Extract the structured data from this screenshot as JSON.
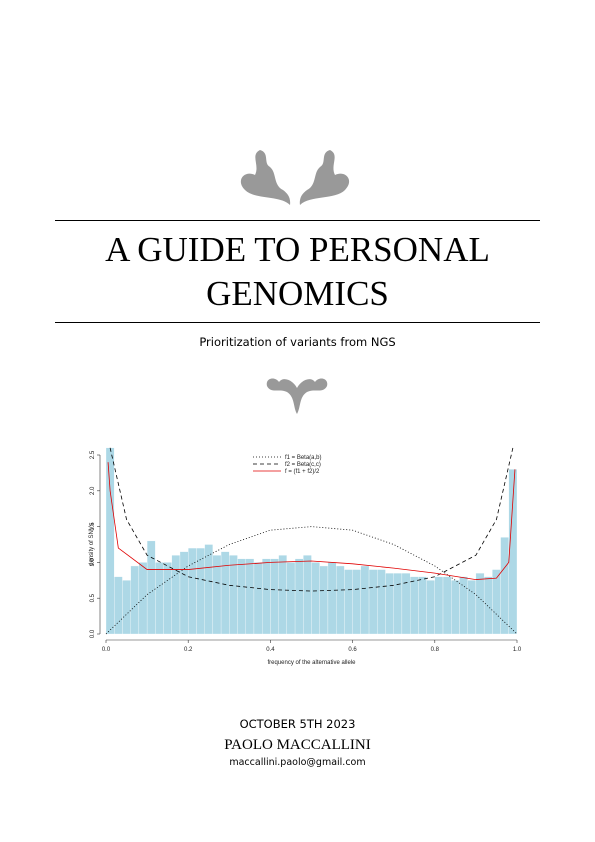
{
  "title": "A GUIDE TO PERSONAL GENOMICS",
  "subtitle": "Prioritization of variants from NGS",
  "date": "OCTOBER 5TH 2023",
  "author": "PAOLO MACCALLINI",
  "email": "maccallini.paolo@gmail.com",
  "figure": {
    "type": "histogram",
    "xlabel": "frequency of the alternative allele",
    "ylabel": "density of SNVs",
    "bins": [
      0,
      0.02,
      0.04,
      0.06,
      0.08,
      0.1,
      0.12,
      0.14,
      0.16,
      0.18,
      0.2,
      0.22,
      0.24,
      0.26,
      0.28,
      0.3,
      0.32,
      0.34,
      0.36,
      0.38,
      0.4,
      0.42,
      0.44,
      0.46,
      0.48,
      0.5,
      0.52,
      0.54,
      0.56,
      0.58,
      0.6,
      0.62,
      0.64,
      0.66,
      0.68,
      0.7,
      0.72,
      0.74,
      0.76,
      0.78,
      0.8,
      0.82,
      0.84,
      0.86,
      0.88,
      0.9,
      0.92,
      0.94,
      0.96,
      0.98,
      1
    ],
    "values": [
      2.6,
      0.8,
      0.75,
      0.95,
      1.0,
      1.3,
      1.0,
      1.0,
      1.1,
      1.15,
      1.2,
      1.2,
      1.25,
      1.1,
      1.15,
      1.1,
      1.05,
      1.05,
      1.0,
      1.05,
      1.05,
      1.1,
      1.0,
      1.05,
      1.1,
      1.0,
      0.95,
      1.0,
      0.95,
      0.9,
      0.9,
      0.95,
      0.9,
      0.9,
      0.85,
      0.85,
      0.85,
      0.8,
      0.8,
      0.75,
      0.8,
      0.8,
      0.75,
      0.8,
      0.75,
      0.85,
      0.8,
      0.9,
      1.35,
      2.3
    ],
    "color": "#add8e6",
    "series": [
      {
        "name": "f1 = Beta(a,b)",
        "color": "#000000",
        "dash": "1,2",
        "x": [
          0,
          0.1,
          0.2,
          0.3,
          0.4,
          0.5,
          0.6,
          0.7,
          0.8,
          0.9,
          1
        ],
        "values": [
          0,
          0.55,
          0.95,
          1.25,
          1.45,
          1.5,
          1.45,
          1.25,
          0.95,
          0.55,
          0
        ]
      },
      {
        "name": "f2 = Beta(c,c)",
        "color": "#000000",
        "dash": "4,3",
        "x": [
          0.01,
          0.05,
          0.1,
          0.2,
          0.3,
          0.4,
          0.5,
          0.6,
          0.7,
          0.8,
          0.9,
          0.95,
          0.99
        ],
        "values": [
          2.6,
          1.6,
          1.1,
          0.8,
          0.68,
          0.62,
          0.6,
          0.62,
          0.68,
          0.8,
          1.1,
          1.6,
          2.6
        ]
      },
      {
        "name": "f = (f1 + f2)/2",
        "color": "#e00000",
        "dash": "none",
        "x": [
          0.005,
          0.01,
          0.03,
          0.1,
          0.2,
          0.3,
          0.4,
          0.5,
          0.6,
          0.7,
          0.8,
          0.9,
          0.95,
          0.98,
          0.995
        ],
        "values": [
          2.4,
          2.0,
          1.2,
          0.9,
          0.9,
          0.96,
          1.0,
          1.02,
          0.98,
          0.92,
          0.85,
          0.76,
          0.78,
          1.0,
          2.3
        ]
      }
    ],
    "xlim": [
      0,
      1
    ],
    "ylim": [
      0,
      2.5
    ],
    "xticks": [
      {
        "value": 0,
        "label": "0.0"
      },
      0.2,
      0.4,
      0.6,
      0.8,
      {
        "value": 1,
        "label": "1.0"
      }
    ],
    "yticks": [
      {
        "value": 0,
        "label": "0.0"
      },
      0.5,
      {
        "value": 1,
        "label": "1.0"
      },
      1.5,
      {
        "value": 2,
        "label": "2.0"
      },
      2.5
    ]
  }
}
